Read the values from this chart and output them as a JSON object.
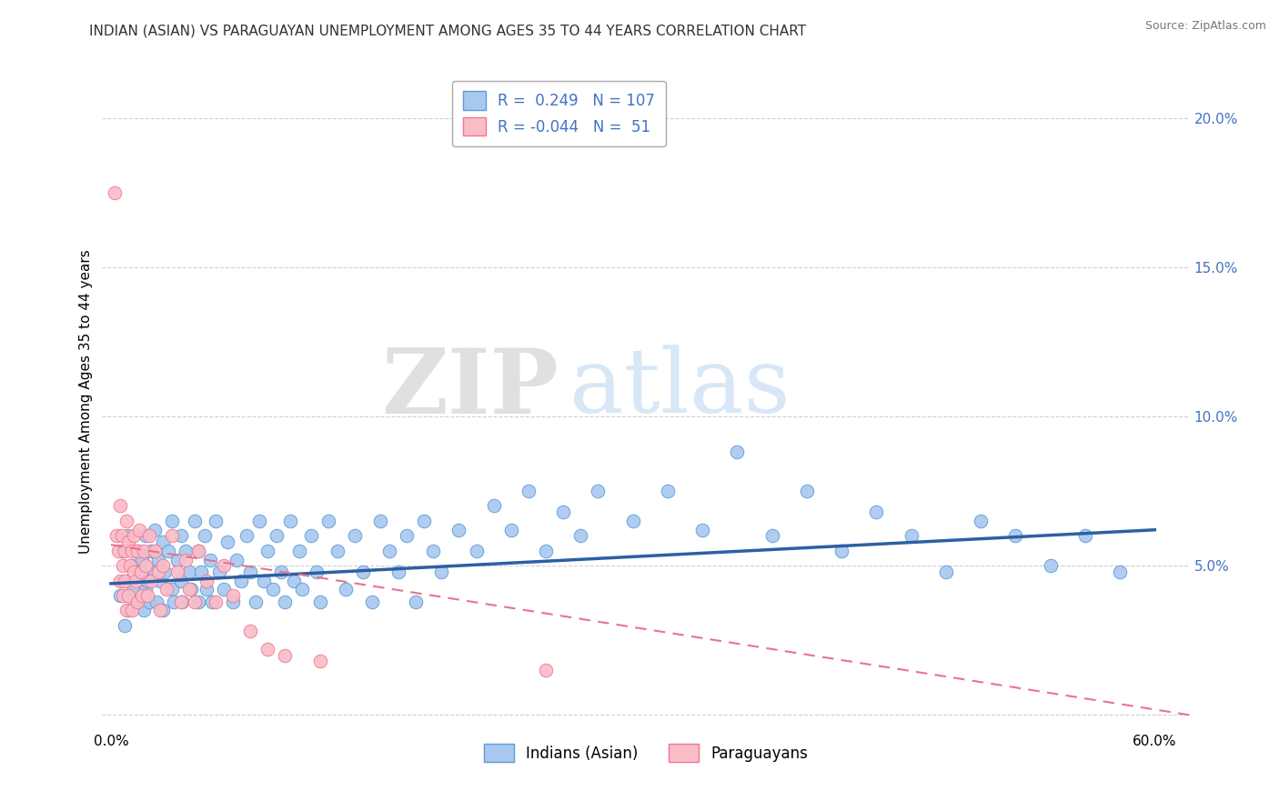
{
  "title": "INDIAN (ASIAN) VS PARAGUAYAN UNEMPLOYMENT AMONG AGES 35 TO 44 YEARS CORRELATION CHART",
  "source": "Source: ZipAtlas.com",
  "xlabel": "",
  "ylabel": "Unemployment Among Ages 35 to 44 years",
  "xlim": [
    -0.005,
    0.62
  ],
  "ylim": [
    -0.005,
    0.215
  ],
  "xticks": [
    0.0,
    0.1,
    0.2,
    0.3,
    0.4,
    0.5,
    0.6
  ],
  "xticklabels": [
    "0.0%",
    "",
    "",
    "",
    "",
    "",
    "60.0%"
  ],
  "yticks": [
    0.0,
    0.05,
    0.1,
    0.15,
    0.2
  ],
  "yticklabels": [
    "",
    "",
    "",
    "",
    ""
  ],
  "right_yticklabels": [
    "",
    "5.0%",
    "10.0%",
    "15.0%",
    "20.0%"
  ],
  "blue_color": "#A8C8F0",
  "pink_color": "#F9BDC8",
  "blue_edge_color": "#5B9BD5",
  "pink_edge_color": "#F4758F",
  "blue_line_color": "#2E5FA3",
  "pink_line_color": "#E8748A",
  "legend_R_blue": "0.249",
  "legend_N_blue": "107",
  "legend_R_pink": "-0.044",
  "legend_N_pink": "51",
  "legend_label_blue": "Indians (Asian)",
  "legend_label_pink": "Paraguayans",
  "watermark_zip": "ZIP",
  "watermark_atlas": "atlas",
  "blue_trend_x": [
    0.0,
    0.6
  ],
  "blue_trend_y": [
    0.044,
    0.062
  ],
  "pink_trend_x": [
    0.0,
    0.62
  ],
  "pink_trend_y": [
    0.057,
    0.0
  ],
  "background_color": "#ffffff",
  "grid_color": "#d0d0d0",
  "title_fontsize": 11,
  "axis_label_fontsize": 11,
  "tick_fontsize": 11,
  "legend_fontsize": 12,
  "right_tick_color": "#4472C4",
  "blue_scatter_x": [
    0.005,
    0.007,
    0.008,
    0.009,
    0.01,
    0.01,
    0.012,
    0.013,
    0.015,
    0.015,
    0.016,
    0.018,
    0.019,
    0.02,
    0.02,
    0.021,
    0.022,
    0.023,
    0.025,
    0.025,
    0.026,
    0.027,
    0.028,
    0.03,
    0.03,
    0.031,
    0.033,
    0.035,
    0.035,
    0.036,
    0.038,
    0.04,
    0.04,
    0.041,
    0.043,
    0.045,
    0.046,
    0.048,
    0.05,
    0.05,
    0.052,
    0.054,
    0.055,
    0.057,
    0.058,
    0.06,
    0.062,
    0.065,
    0.067,
    0.07,
    0.072,
    0.075,
    0.078,
    0.08,
    0.083,
    0.085,
    0.088,
    0.09,
    0.093,
    0.095,
    0.098,
    0.1,
    0.103,
    0.105,
    0.108,
    0.11,
    0.115,
    0.118,
    0.12,
    0.125,
    0.13,
    0.135,
    0.14,
    0.145,
    0.15,
    0.155,
    0.16,
    0.165,
    0.17,
    0.175,
    0.18,
    0.185,
    0.19,
    0.2,
    0.21,
    0.22,
    0.23,
    0.24,
    0.25,
    0.26,
    0.27,
    0.28,
    0.3,
    0.32,
    0.34,
    0.36,
    0.38,
    0.4,
    0.42,
    0.44,
    0.46,
    0.48,
    0.5,
    0.52,
    0.54,
    0.56,
    0.58
  ],
  "blue_scatter_y": [
    0.04,
    0.055,
    0.03,
    0.045,
    0.06,
    0.035,
    0.05,
    0.042,
    0.038,
    0.055,
    0.048,
    0.052,
    0.035,
    0.06,
    0.042,
    0.045,
    0.038,
    0.055,
    0.048,
    0.062,
    0.038,
    0.052,
    0.045,
    0.058,
    0.035,
    0.048,
    0.055,
    0.042,
    0.065,
    0.038,
    0.052,
    0.045,
    0.06,
    0.038,
    0.055,
    0.048,
    0.042,
    0.065,
    0.038,
    0.055,
    0.048,
    0.06,
    0.042,
    0.052,
    0.038,
    0.065,
    0.048,
    0.042,
    0.058,
    0.038,
    0.052,
    0.045,
    0.06,
    0.048,
    0.038,
    0.065,
    0.045,
    0.055,
    0.042,
    0.06,
    0.048,
    0.038,
    0.065,
    0.045,
    0.055,
    0.042,
    0.06,
    0.048,
    0.038,
    0.065,
    0.055,
    0.042,
    0.06,
    0.048,
    0.038,
    0.065,
    0.055,
    0.048,
    0.06,
    0.038,
    0.065,
    0.055,
    0.048,
    0.062,
    0.055,
    0.07,
    0.062,
    0.075,
    0.055,
    0.068,
    0.06,
    0.075,
    0.065,
    0.075,
    0.062,
    0.088,
    0.06,
    0.075,
    0.055,
    0.068,
    0.06,
    0.048,
    0.065,
    0.06,
    0.05,
    0.06,
    0.048
  ],
  "pink_scatter_x": [
    0.002,
    0.003,
    0.004,
    0.005,
    0.005,
    0.006,
    0.007,
    0.007,
    0.008,
    0.008,
    0.009,
    0.009,
    0.01,
    0.01,
    0.011,
    0.012,
    0.012,
    0.013,
    0.013,
    0.014,
    0.015,
    0.015,
    0.016,
    0.017,
    0.018,
    0.019,
    0.02,
    0.021,
    0.022,
    0.023,
    0.025,
    0.027,
    0.028,
    0.03,
    0.032,
    0.035,
    0.038,
    0.04,
    0.043,
    0.045,
    0.048,
    0.05,
    0.055,
    0.06,
    0.065,
    0.07,
    0.08,
    0.09,
    0.1,
    0.12,
    0.25
  ],
  "pink_scatter_y": [
    0.175,
    0.06,
    0.055,
    0.07,
    0.045,
    0.06,
    0.05,
    0.04,
    0.055,
    0.045,
    0.065,
    0.035,
    0.058,
    0.04,
    0.05,
    0.055,
    0.035,
    0.048,
    0.06,
    0.045,
    0.055,
    0.038,
    0.062,
    0.048,
    0.04,
    0.055,
    0.05,
    0.04,
    0.06,
    0.045,
    0.055,
    0.048,
    0.035,
    0.05,
    0.042,
    0.06,
    0.048,
    0.038,
    0.052,
    0.042,
    0.038,
    0.055,
    0.045,
    0.038,
    0.05,
    0.04,
    0.028,
    0.022,
    0.02,
    0.018,
    0.015
  ]
}
